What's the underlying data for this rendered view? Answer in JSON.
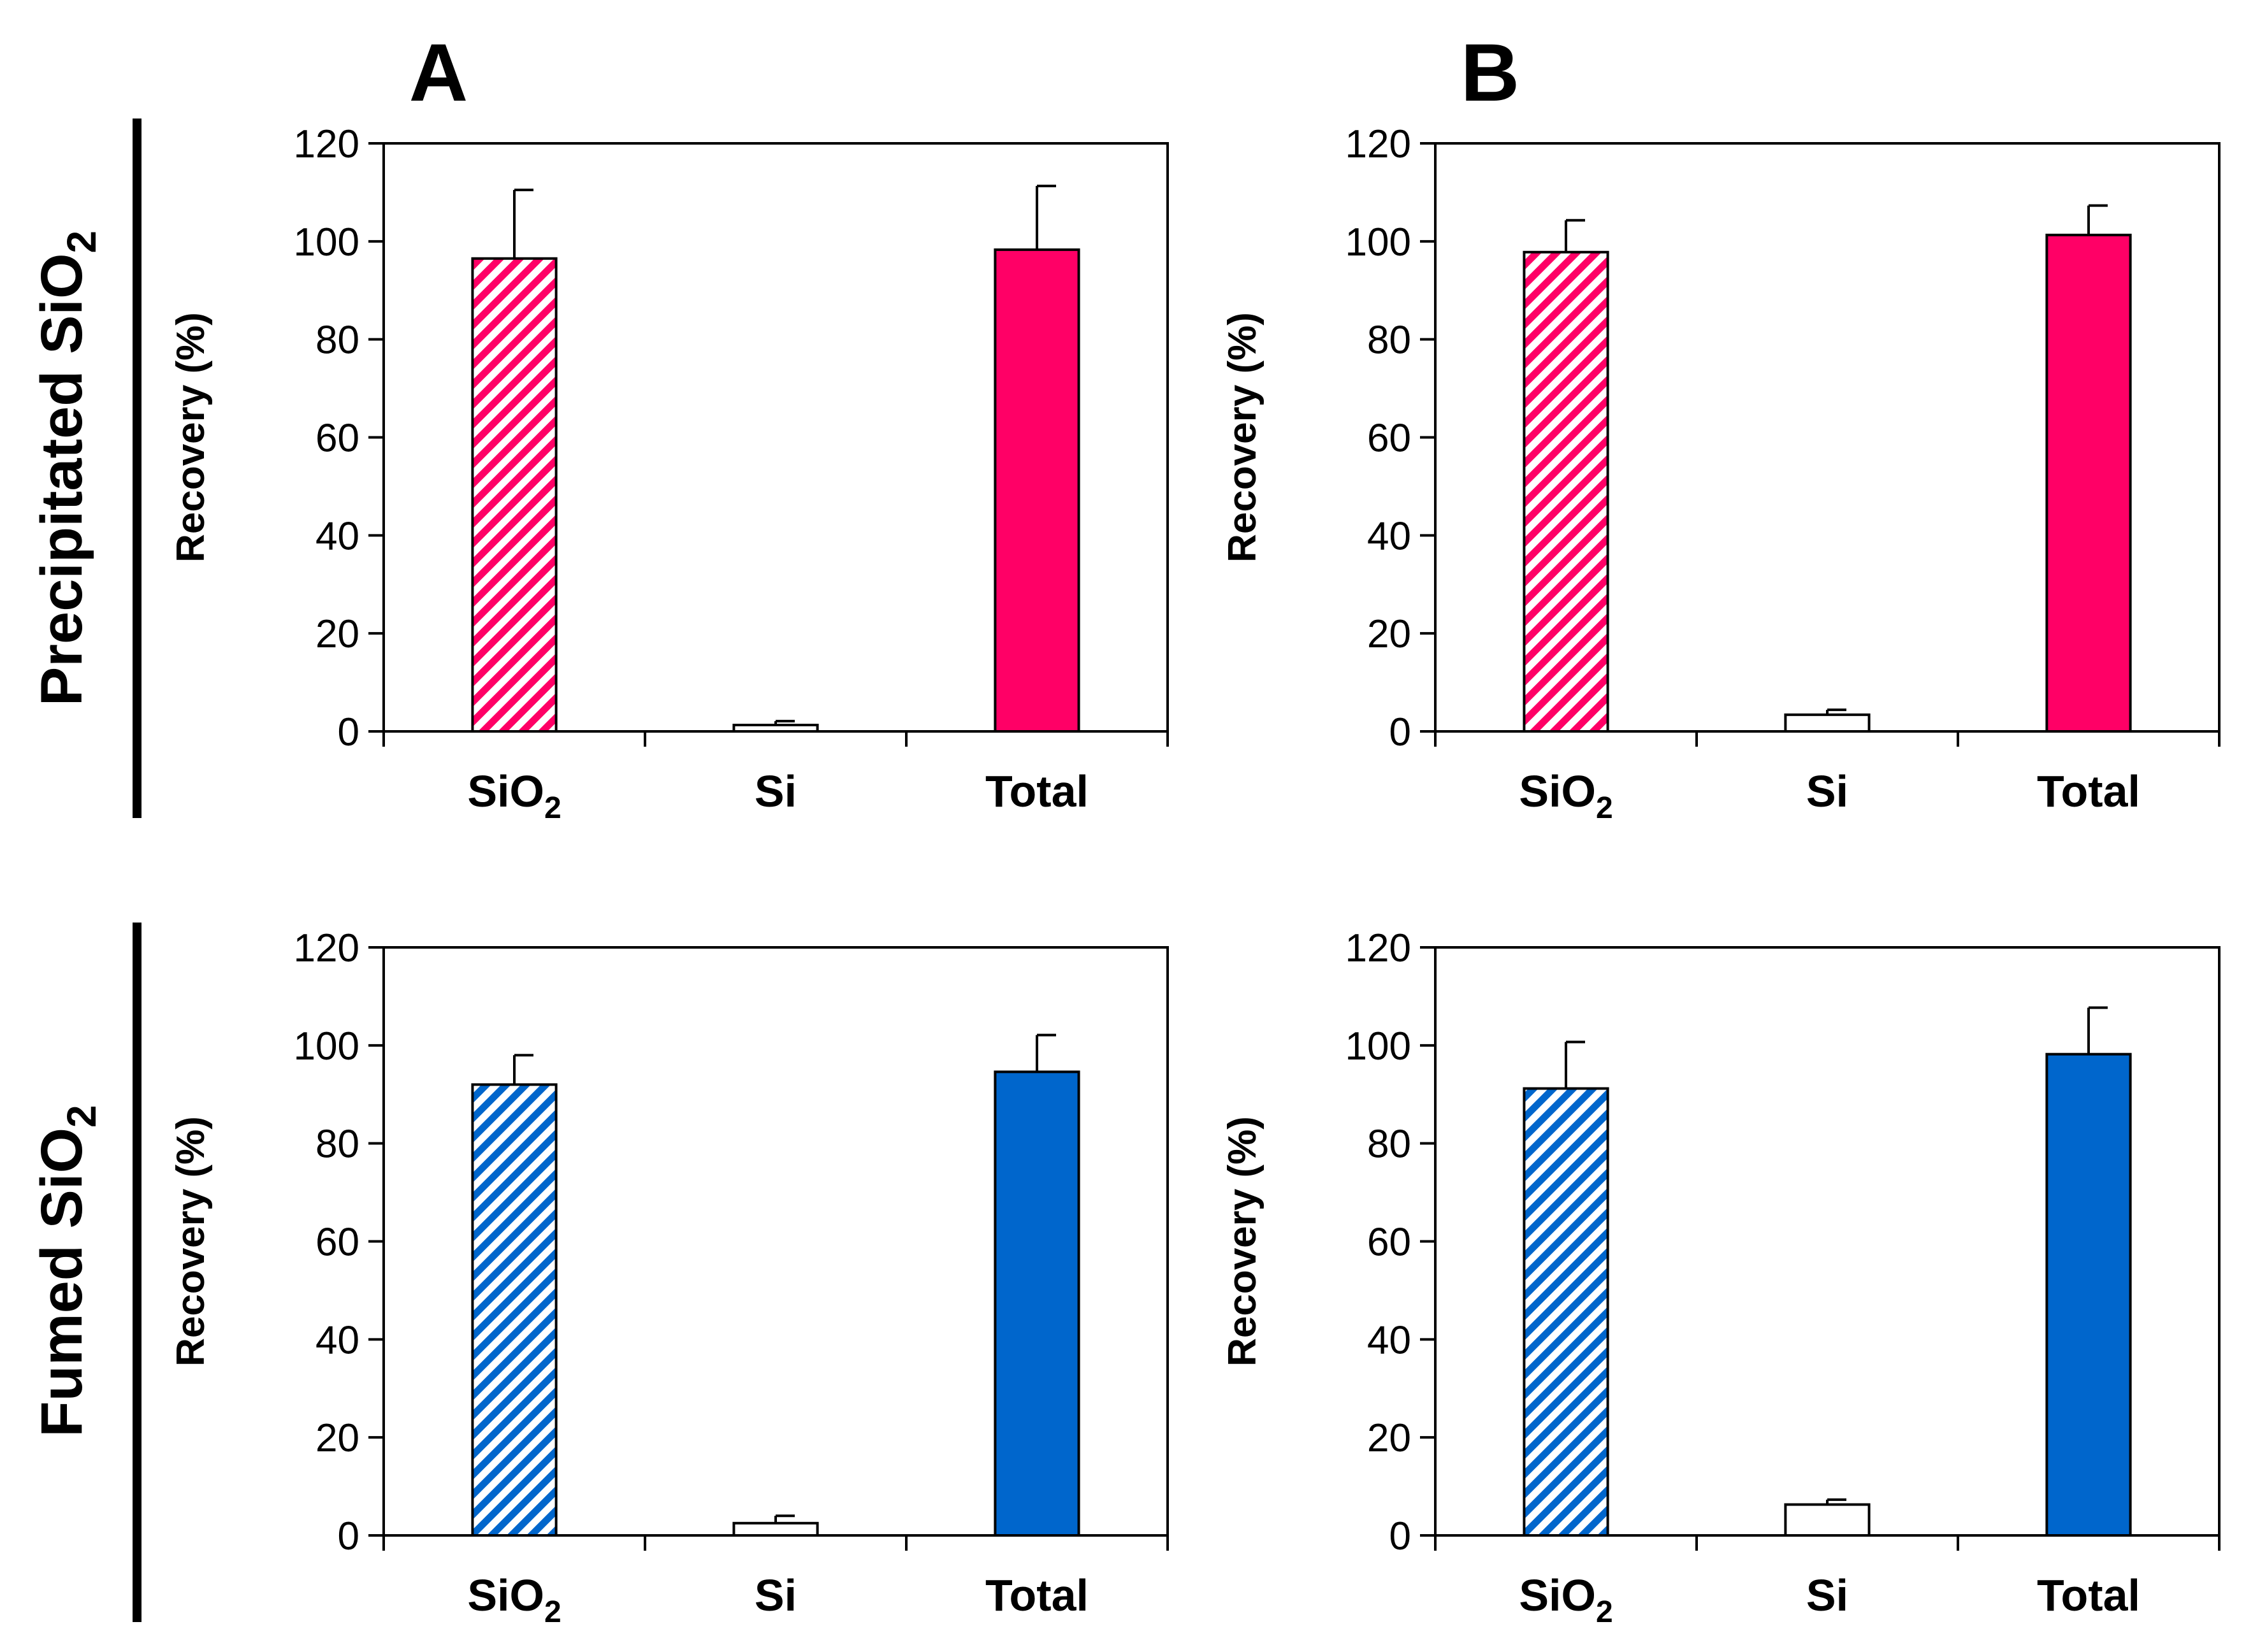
{
  "panel_letters": [
    "A",
    "B"
  ],
  "row_labels": [
    {
      "main": "Precipitated SiO",
      "sub": "2"
    },
    {
      "main": "Fumed SiO",
      "sub": "2"
    }
  ],
  "colors": {
    "precipitated": "#ff0066",
    "fumed": "#0066cc",
    "si_bar": "#ffffff",
    "axis": "#000000"
  },
  "chart_data": [
    {
      "id": "A-precipitated",
      "type": "bar",
      "panel": "A",
      "row": "Precipitated SiO2",
      "categories": [
        {
          "main": "SiO",
          "sub": "2"
        },
        {
          "main": "Si",
          "sub": ""
        },
        {
          "main": "Total",
          "sub": ""
        }
      ],
      "values": [
        96.5,
        1.3,
        98.3
      ],
      "errors": [
        14,
        0.8,
        13
      ],
      "fills": [
        "hatch",
        "white",
        "solid"
      ],
      "ylabel": "Recovery (%)",
      "ylim": [
        0,
        120
      ],
      "yticks": [
        0,
        20,
        40,
        60,
        80,
        100,
        120
      ]
    },
    {
      "id": "B-precipitated",
      "type": "bar",
      "panel": "B",
      "row": "Precipitated SiO2",
      "categories": [
        {
          "main": "SiO",
          "sub": "2"
        },
        {
          "main": "Si",
          "sub": ""
        },
        {
          "main": "Total",
          "sub": ""
        }
      ],
      "values": [
        97.8,
        3.4,
        101.3
      ],
      "errors": [
        6.5,
        1,
        6
      ],
      "fills": [
        "hatch",
        "white",
        "solid"
      ],
      "ylabel": "Recovery (%)",
      "ylim": [
        0,
        120
      ],
      "yticks": [
        0,
        20,
        40,
        60,
        80,
        100,
        120
      ]
    },
    {
      "id": "A-fumed",
      "type": "bar",
      "panel": "A",
      "row": "Fumed SiO2",
      "categories": [
        {
          "main": "SiO",
          "sub": "2"
        },
        {
          "main": "Si",
          "sub": ""
        },
        {
          "main": "Total",
          "sub": ""
        }
      ],
      "values": [
        92,
        2.5,
        94.6
      ],
      "errors": [
        6,
        1.5,
        7.5
      ],
      "fills": [
        "hatch",
        "white",
        "solid"
      ],
      "ylabel": "Recovery (%)",
      "ylim": [
        0,
        120
      ],
      "yticks": [
        0,
        20,
        40,
        60,
        80,
        100,
        120
      ]
    },
    {
      "id": "B-fumed",
      "type": "bar",
      "panel": "B",
      "row": "Fumed SiO2",
      "categories": [
        {
          "main": "SiO",
          "sub": "2"
        },
        {
          "main": "Si",
          "sub": ""
        },
        {
          "main": "Total",
          "sub": ""
        }
      ],
      "values": [
        91.2,
        6.3,
        98.2
      ],
      "errors": [
        9.5,
        1,
        9.5
      ],
      "fills": [
        "hatch",
        "white",
        "solid"
      ],
      "ylabel": "Recovery (%)",
      "ylim": [
        0,
        120
      ],
      "yticks": [
        0,
        20,
        40,
        60,
        80,
        100,
        120
      ]
    }
  ]
}
